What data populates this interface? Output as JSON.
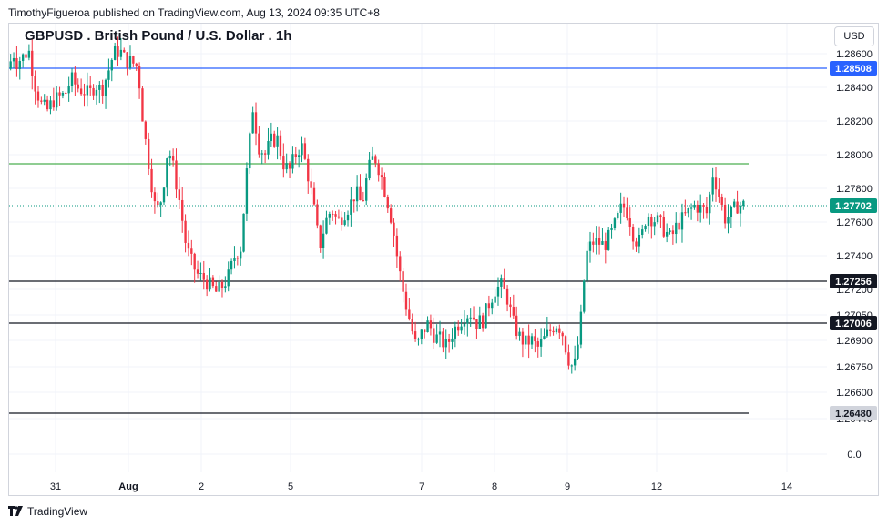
{
  "header": {
    "publisher_line": "TimothyFigueroa published on TradingView.com, Aug 13, 2024 09:35 UTC+8"
  },
  "chart_title": "GBPUSD . British Pound / U.S. Dollar . 1h",
  "currency_button": "USD",
  "brand": {
    "name": "TradingView",
    "icon": "tradingview-logo-icon"
  },
  "colors": {
    "up": "#089981",
    "down": "#f23645",
    "blue_line": "#2962ff",
    "green_line": "#4caf50",
    "black_line": "#131722",
    "grid": "#f0f3fa"
  },
  "chart_data": {
    "type": "candlestick",
    "y_tick_labels": [
      "1.28600",
      "1.28400",
      "1.28200",
      "1.28000",
      "1.27800",
      "1.27600",
      "1.27400",
      "1.27200",
      "1.27050",
      "1.26900",
      "1.26750",
      "1.26600",
      "1.26440",
      "0.0"
    ],
    "x_tick_labels": [
      "31",
      "Aug",
      "2",
      "5",
      "7",
      "8",
      "9",
      "12",
      "14"
    ],
    "horizontal_levels": [
      {
        "label": "1.28508",
        "color": "#2962ff",
        "type": "line"
      },
      {
        "label": "1.27942",
        "color": "#4caf50",
        "type": "line",
        "show_label": false
      },
      {
        "label": "1.27256",
        "color": "#131722",
        "type": "line"
      },
      {
        "label": "1.27006",
        "color": "#131722",
        "type": "line"
      },
      {
        "label": "1.26480",
        "color": "#131722",
        "type": "line",
        "muted": true
      }
    ],
    "last_price": {
      "label": "1.27702",
      "color": "#089981"
    },
    "path_points": [
      [
        0,
        1.2851
      ],
      [
        4,
        1.286
      ],
      [
        6,
        1.2855
      ],
      [
        10,
        1.2858
      ],
      [
        14,
        1.2862
      ],
      [
        18,
        1.2842
      ],
      [
        22,
        1.283
      ],
      [
        26,
        1.2826
      ],
      [
        30,
        1.2832
      ],
      [
        34,
        1.2834
      ],
      [
        38,
        1.2836
      ],
      [
        42,
        1.2845
      ],
      [
        46,
        1.284
      ],
      [
        50,
        1.2838
      ],
      [
        54,
        1.2836
      ],
      [
        58,
        1.2842
      ],
      [
        62,
        1.2838
      ],
      [
        66,
        1.2848
      ],
      [
        70,
        1.286
      ],
      [
        74,
        1.2862
      ],
      [
        78,
        1.2856
      ],
      [
        82,
        1.2855
      ],
      [
        86,
        1.2852
      ],
      [
        90,
        1.2815
      ],
      [
        94,
        1.279
      ],
      [
        98,
        1.2765
      ],
      [
        102,
        1.2775
      ],
      [
        106,
        1.2805
      ],
      [
        110,
        1.279
      ],
      [
        114,
        1.277
      ],
      [
        118,
        1.2745
      ],
      [
        122,
        1.2735
      ],
      [
        126,
        1.2728
      ],
      [
        130,
        1.2726
      ],
      [
        134,
        1.2722
      ],
      [
        138,
        1.2718
      ],
      [
        142,
        1.2722
      ],
      [
        146,
        1.2728
      ],
      [
        150,
        1.274
      ],
      [
        154,
        1.2745
      ],
      [
        158,
        1.279
      ],
      [
        162,
        1.2828
      ],
      [
        166,
        1.2805
      ],
      [
        170,
        1.28
      ],
      [
        174,
        1.2808
      ],
      [
        178,
        1.281
      ],
      [
        182,
        1.2795
      ],
      [
        186,
        1.279
      ],
      [
        190,
        1.28
      ],
      [
        194,
        1.2806
      ],
      [
        198,
        1.279
      ],
      [
        202,
        1.277
      ],
      [
        206,
        1.2745
      ],
      [
        210,
        1.276
      ],
      [
        214,
        1.2768
      ],
      [
        218,
        1.276
      ],
      [
        222,
        1.2765
      ],
      [
        226,
        1.277
      ],
      [
        230,
        1.2778
      ],
      [
        234,
        1.277
      ],
      [
        238,
        1.279
      ],
      [
        242,
        1.28
      ],
      [
        246,
        1.279
      ],
      [
        250,
        1.2776
      ],
      [
        254,
        1.276
      ],
      [
        258,
        1.2735
      ],
      [
        262,
        1.2715
      ],
      [
        266,
        1.27
      ],
      [
        270,
        1.2685
      ],
      [
        274,
        1.2695
      ],
      [
        278,
        1.27
      ],
      [
        282,
        1.2692
      ],
      [
        286,
        1.269
      ],
      [
        290,
        1.2686
      ],
      [
        294,
        1.2695
      ],
      [
        298,
        1.27
      ],
      [
        302,
        1.2705
      ],
      [
        306,
        1.2706
      ],
      [
        310,
        1.27
      ],
      [
        314,
        1.2702
      ],
      [
        318,
        1.2712
      ],
      [
        322,
        1.272
      ],
      [
        326,
        1.2722
      ],
      [
        330,
        1.2715
      ],
      [
        334,
        1.27
      ],
      [
        338,
        1.2692
      ],
      [
        342,
        1.2688
      ],
      [
        346,
        1.269
      ],
      [
        350,
        1.2685
      ],
      [
        354,
        1.269
      ],
      [
        358,
        1.2695
      ],
      [
        362,
        1.27
      ],
      [
        366,
        1.2696
      ],
      [
        370,
        1.268
      ],
      [
        374,
        1.2672
      ],
      [
        378,
        1.2695
      ],
      [
        382,
        1.274
      ],
      [
        386,
        1.2748
      ],
      [
        390,
        1.2748
      ],
      [
        394,
        1.2746
      ],
      [
        398,
        1.2752
      ],
      [
        402,
        1.276
      ],
      [
        406,
        1.277
      ],
      [
        410,
        1.2765
      ],
      [
        414,
        1.275
      ],
      [
        418,
        1.2748
      ],
      [
        422,
        1.2765
      ],
      [
        426,
        1.2762
      ],
      [
        430,
        1.276
      ],
      [
        434,
        1.2755
      ],
      [
        438,
        1.275
      ],
      [
        442,
        1.2758
      ],
      [
        446,
        1.2762
      ],
      [
        450,
        1.2766
      ],
      [
        454,
        1.277
      ],
      [
        458,
        1.2768
      ],
      [
        462,
        1.2765
      ],
      [
        466,
        1.279
      ],
      [
        470,
        1.2775
      ],
      [
        474,
        1.2762
      ],
      [
        478,
        1.2765
      ],
      [
        482,
        1.277
      ],
      [
        486,
        1.277
      ]
    ]
  }
}
